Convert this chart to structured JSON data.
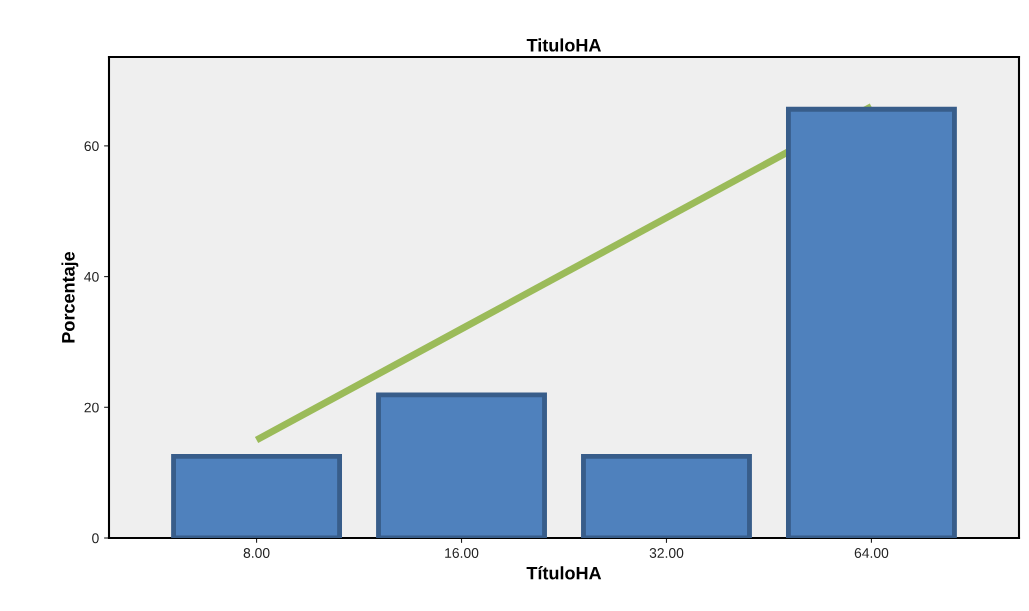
{
  "chart_data": {
    "type": "bar",
    "title": "TituloHA",
    "xlabel": "TítuloHA",
    "ylabel": "Porcentaje",
    "categories": [
      "8.00",
      "16.00",
      "32.00",
      "64.00"
    ],
    "series": [
      {
        "color": "#4f81bd",
        "values": [
          12.5,
          21.9,
          12.5,
          65.6
        ]
      },
      {
        "type": "line",
        "color": "#9bbb59",
        "values": [
          15.0,
          32.0,
          49.0,
          66.0
        ]
      }
    ],
    "ylim": [
      0,
      73.6
    ],
    "yticks": [
      0,
      20,
      40,
      60
    ],
    "grid": false,
    "legend": false
  }
}
